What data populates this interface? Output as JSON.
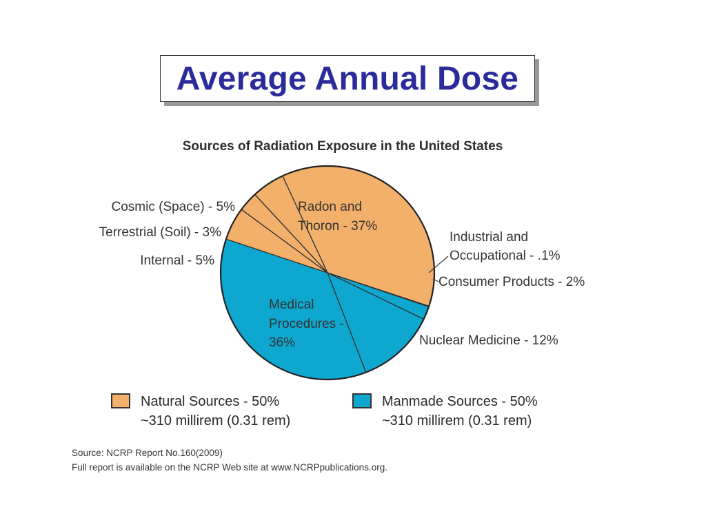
{
  "slide": {
    "title": "Average Annual Dose"
  },
  "chart_data": {
    "type": "pie",
    "subtitle": "Sources of Radiation Exposure in the United States",
    "slices": [
      {
        "label": "Cosmic (Space) - 5%",
        "value": 5,
        "group": "natural"
      },
      {
        "label": "Radon and Thoron - 37%",
        "value": 37,
        "group": "natural"
      },
      {
        "label": "Industrial and Occupational - .1%",
        "value": 0.1,
        "group": "manmade"
      },
      {
        "label": "Consumer Products - 2%",
        "value": 2,
        "group": "manmade"
      },
      {
        "label": "Nuclear Medicine - 12%",
        "value": 12,
        "group": "manmade"
      },
      {
        "label": "Medical Procedures - 36%",
        "value": 36,
        "group": "manmade"
      },
      {
        "label": "Internal - 5%",
        "value": 5,
        "group": "natural"
      },
      {
        "label": "Terrestrial (Soil) - 3%",
        "value": 3,
        "group": "natural"
      }
    ],
    "legend": {
      "natural": {
        "line1": "Natural Sources - 50%",
        "line2": "~310 millirem (0.31 rem)",
        "color": "#f2b06a"
      },
      "manmade": {
        "line1": "Manmade Sources - 50%",
        "line2": "~310 millirem (0.31 rem)",
        "color": "#0ea7cf"
      }
    },
    "labels_display": {
      "cosmic": "Cosmic (Space) - 5%",
      "terrestrial": "Terrestrial (Soil) - 3%",
      "internal": "Internal - 5%",
      "radon_line1": "Radon and",
      "radon_line2": "Thoron - 37%",
      "industrial_line1": "Industrial and",
      "industrial_line2": "Occupational - .1%",
      "consumer": "Consumer Products - 2%",
      "nuclear": "Nuclear Medicine - 12%",
      "medical_line1": "Medical",
      "medical_line2": "Procedures -",
      "medical_line3": "36%"
    },
    "source_line1": "Source: NCRP Report No.160(2009)",
    "source_line2": "Full report is available on the NCRP Web site at www.NCRPpublications.org."
  }
}
